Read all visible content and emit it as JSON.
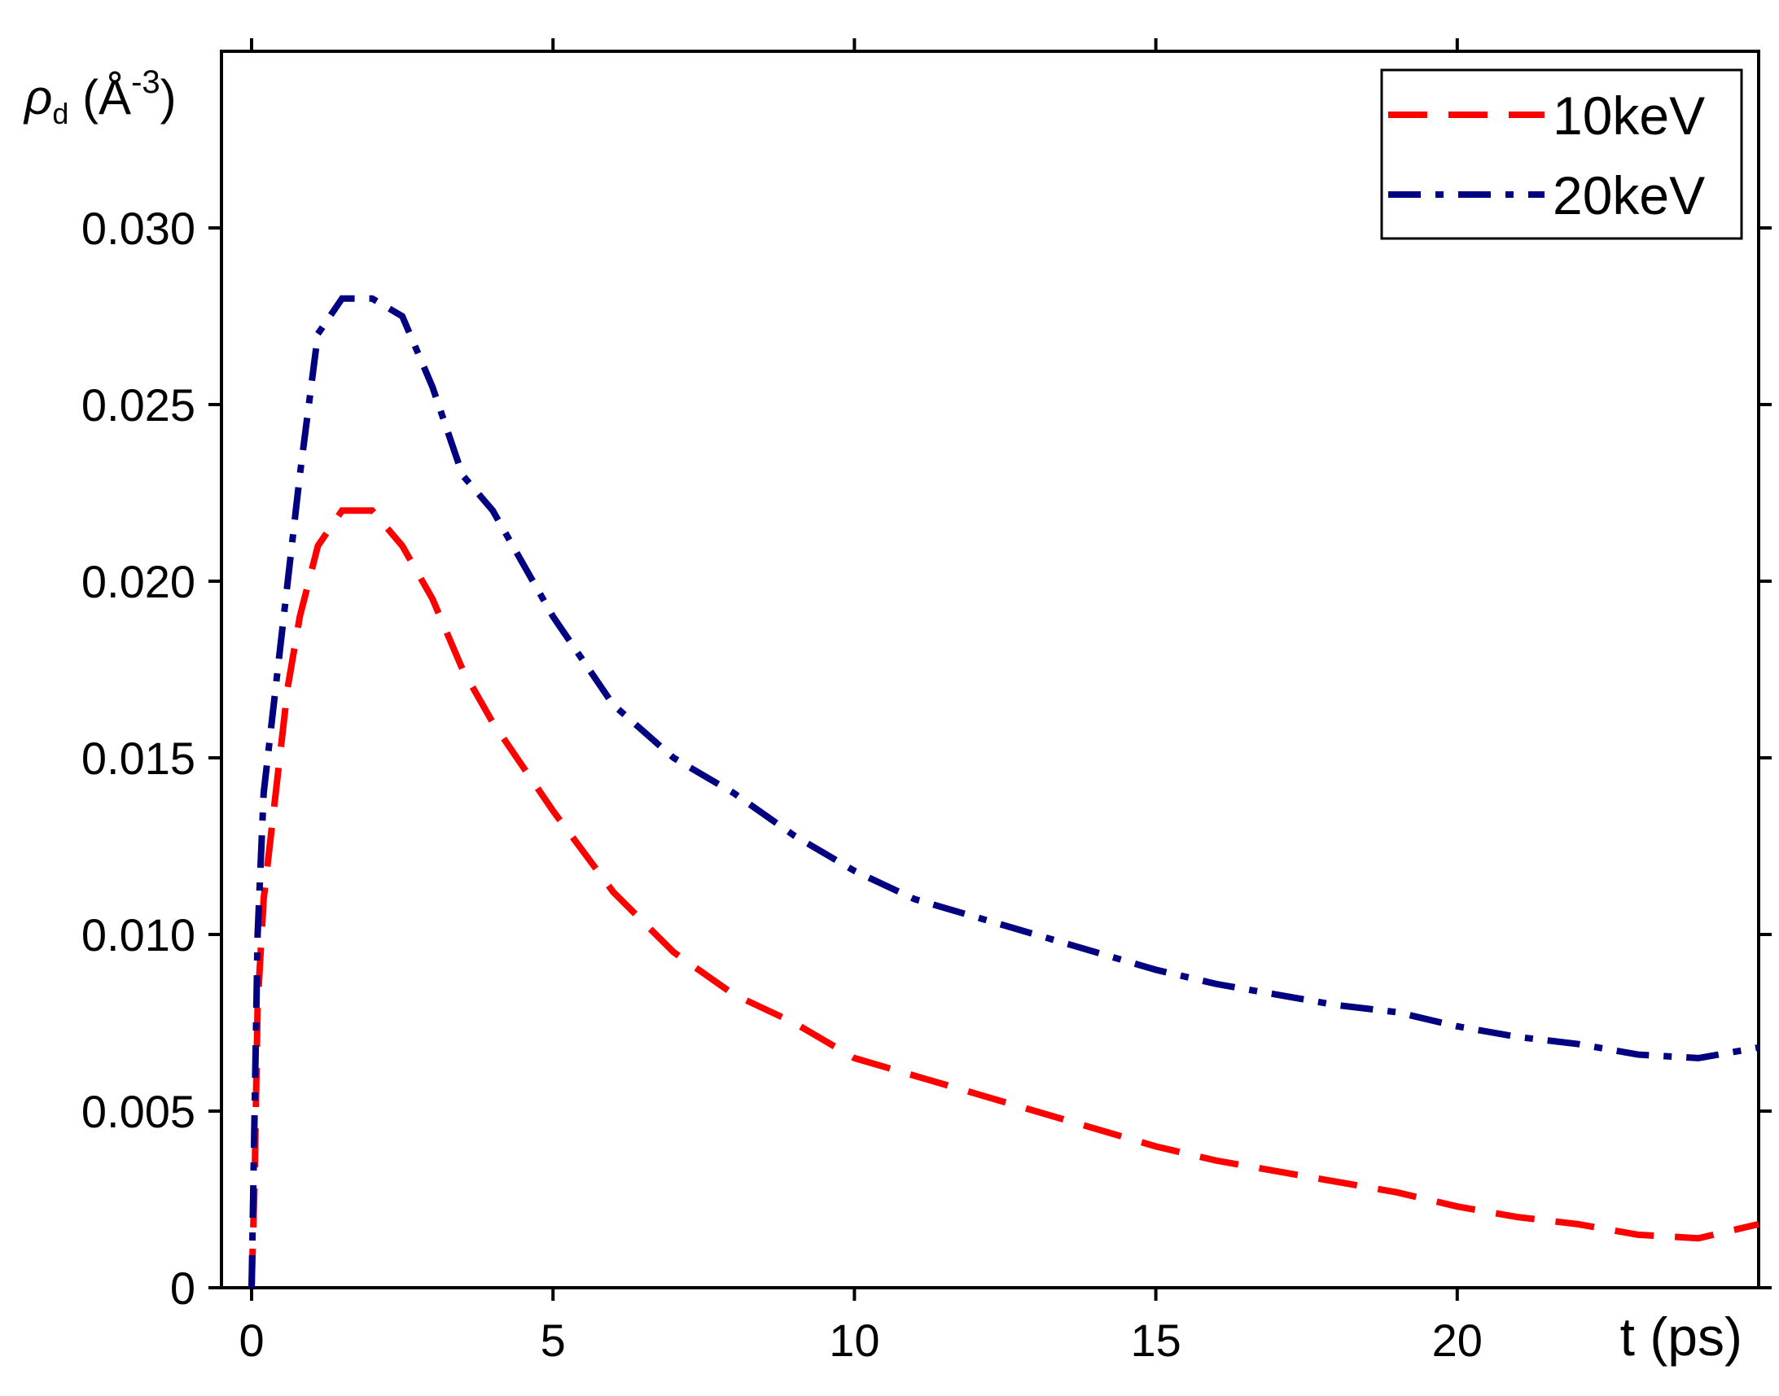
{
  "chart_data": {
    "type": "line",
    "ylabel": [
      "ρ",
      "d",
      " (Å",
      "-3",
      ")"
    ],
    "xlabel": "t (ps)",
    "x": [
      0,
      0.05,
      0.1,
      0.2,
      0.4,
      0.6,
      0.8,
      1.1,
      1.5,
      2,
      2.5,
      3,
      3.5,
      4,
      5,
      6,
      7,
      8,
      9,
      10,
      11,
      12,
      13,
      14,
      15,
      16,
      17,
      18,
      19,
      20,
      21,
      22,
      23,
      24,
      25
    ],
    "series": [
      {
        "name": "10keV",
        "color": "#ff0000",
        "dash": "dashed",
        "values": [
          0,
          0.003,
          0.008,
          0.011,
          0.014,
          0.017,
          0.019,
          0.021,
          0.022,
          0.022,
          0.021,
          0.0195,
          0.0175,
          0.016,
          0.0135,
          0.0112,
          0.0095,
          0.0083,
          0.0075,
          0.0065,
          0.006,
          0.0055,
          0.005,
          0.0045,
          0.004,
          0.0036,
          0.0033,
          0.003,
          0.0027,
          0.0023,
          0.002,
          0.0018,
          0.0015,
          0.0014,
          0.0018
        ]
      },
      {
        "name": "20keV",
        "color": "#000080",
        "dash": "dashdot",
        "values": [
          0,
          0.005,
          0.01,
          0.014,
          0.017,
          0.02,
          0.023,
          0.027,
          0.028,
          0.028,
          0.0275,
          0.0255,
          0.023,
          0.022,
          0.019,
          0.0165,
          0.015,
          0.014,
          0.0128,
          0.0118,
          0.011,
          0.0105,
          0.01,
          0.0095,
          0.009,
          0.0086,
          0.0083,
          0.008,
          0.0078,
          0.0074,
          0.0071,
          0.0069,
          0.0066,
          0.0065,
          0.0068
        ]
      }
    ],
    "xlim": [
      -0.5,
      25
    ],
    "ylim": [
      0,
      0.035
    ],
    "xticks": [
      0,
      5,
      10,
      15,
      20
    ],
    "yticks": [
      0,
      0.005,
      {
        "value": 0.01,
        "label": "0.010"
      },
      0.015,
      {
        "value": 0.02,
        "label": "0.020"
      },
      0.025,
      {
        "value": 0.03,
        "label": "0.030"
      }
    ],
    "legend": "upper right"
  }
}
